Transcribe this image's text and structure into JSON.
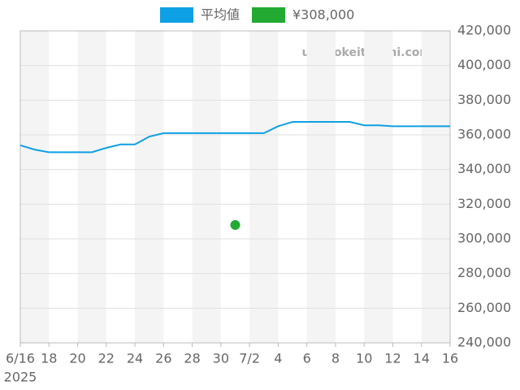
{
  "chart_data": {
    "type": "line",
    "watermark": "udedokeitoushi.com",
    "x": [
      "2025-06-16",
      "2025-06-17",
      "2025-06-18",
      "2025-06-19",
      "2025-06-20",
      "2025-06-21",
      "2025-06-22",
      "2025-06-23",
      "2025-06-24",
      "2025-06-25",
      "2025-06-26",
      "2025-06-27",
      "2025-06-28",
      "2025-06-29",
      "2025-06-30",
      "2025-07-01",
      "2025-07-02",
      "2025-07-03",
      "2025-07-04",
      "2025-07-05",
      "2025-07-06",
      "2025-07-07",
      "2025-07-08",
      "2025-07-09",
      "2025-07-10",
      "2025-07-11",
      "2025-07-12",
      "2025-07-13",
      "2025-07-14",
      "2025-07-15",
      "2025-07-16"
    ],
    "series": [
      {
        "name": "平均値",
        "type": "line",
        "color": "#0ea0e4",
        "values": [
          354000,
          351500,
          350000,
          350000,
          350000,
          350000,
          352500,
          354500,
          354500,
          359000,
          361000,
          361000,
          361000,
          361000,
          361000,
          361000,
          361000,
          361000,
          365000,
          367500,
          367500,
          367500,
          367500,
          367500,
          365500,
          365500,
          365000,
          365000,
          365000,
          365000,
          365000
        ]
      },
      {
        "name": "¥308,000",
        "type": "scatter",
        "color": "#22aa33",
        "values": [
          null,
          null,
          null,
          null,
          null,
          null,
          null,
          null,
          null,
          null,
          null,
          null,
          null,
          null,
          null,
          308000,
          null,
          null,
          null,
          null,
          null,
          null,
          null,
          null,
          null,
          null,
          null,
          null,
          null,
          null,
          null
        ]
      }
    ],
    "xlim": [
      "2025-06-16",
      "2025-07-16"
    ],
    "xticks": [
      {
        "value": "2025-06-16",
        "label": "6/16"
      },
      {
        "value": "2025-06-18",
        "label": "18"
      },
      {
        "value": "2025-06-20",
        "label": "20"
      },
      {
        "value": "2025-06-22",
        "label": "22"
      },
      {
        "value": "2025-06-24",
        "label": "24"
      },
      {
        "value": "2025-06-26",
        "label": "26"
      },
      {
        "value": "2025-06-28",
        "label": "28"
      },
      {
        "value": "2025-06-30",
        "label": "30"
      },
      {
        "value": "2025-07-02",
        "label": "7/2"
      },
      {
        "value": "2025-07-04",
        "label": "4"
      },
      {
        "value": "2025-07-06",
        "label": "6"
      },
      {
        "value": "2025-07-08",
        "label": "8"
      },
      {
        "value": "2025-07-10",
        "label": "10"
      },
      {
        "value": "2025-07-12",
        "label": "12"
      },
      {
        "value": "2025-07-14",
        "label": "14"
      },
      {
        "value": "2025-07-16",
        "label": "16"
      }
    ],
    "x_year_label": "2025",
    "ylim": [
      240000,
      420000
    ],
    "yticks": [
      {
        "value": 240000,
        "label": "240,000"
      },
      {
        "value": 260000,
        "label": "260,000"
      },
      {
        "value": 280000,
        "label": "280,000"
      },
      {
        "value": 300000,
        "label": "300,000"
      },
      {
        "value": 320000,
        "label": "320,000"
      },
      {
        "value": 340000,
        "label": "340,000"
      },
      {
        "value": 360000,
        "label": "360,000"
      },
      {
        "value": 380000,
        "label": "380,000"
      },
      {
        "value": 400000,
        "label": "400,000"
      },
      {
        "value": 420000,
        "label": "420,000"
      }
    ],
    "grid": true
  }
}
